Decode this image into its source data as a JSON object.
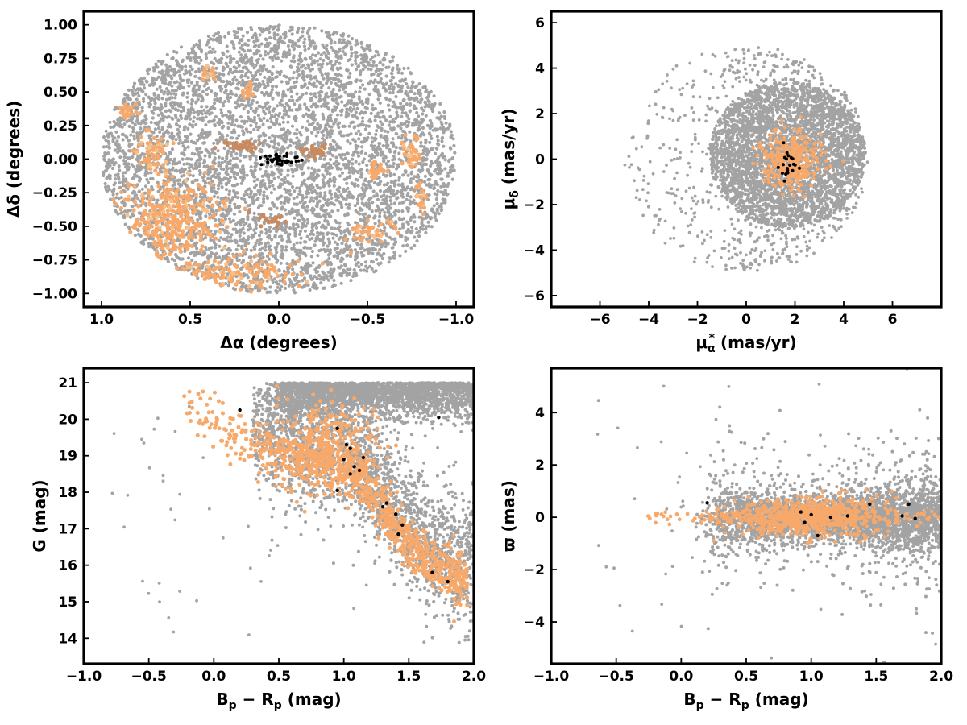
{
  "colors": {
    "field": "#a3a3a3",
    "member": "#f6a96b",
    "member_alt": "#c98a5e",
    "core": "#000000",
    "axes": "#000000"
  },
  "chart_data": [
    {
      "id": "sky",
      "type": "scatter",
      "xlabel": "Δα (degrees)",
      "ylabel": "Δδ (degrees)",
      "xlim": [
        1.1,
        -1.1
      ],
      "ylim": [
        -1.1,
        1.1
      ],
      "x_inverted": true,
      "xticks": [
        1.0,
        0.5,
        0.0,
        -0.5,
        -1.0
      ],
      "xticklabels": [
        "1.0",
        "0.5",
        "0.0",
        "−0.5",
        "−1.0"
      ],
      "yticks": [
        1.0,
        0.75,
        0.5,
        0.25,
        0.0,
        -0.25,
        -0.5,
        -0.75,
        -1.0
      ],
      "yticklabels": [
        "1.00",
        "0.75",
        "0.50",
        "0.25",
        "0.00",
        "−0.25",
        "−0.50",
        "−0.75",
        "−1.00"
      ],
      "field_region": {
        "shape": "ellipse",
        "center": [
          0.0,
          0.0
        ],
        "radius_x": 1.0,
        "radius_y": 1.0
      },
      "member_clumps": [
        {
          "center": [
            0.6,
            -0.45
          ],
          "spread": [
            0.22,
            0.25
          ],
          "n": 380
        },
        {
          "center": [
            0.25,
            -0.85
          ],
          "spread": [
            0.3,
            0.1
          ],
          "n": 150
        },
        {
          "center": [
            0.72,
            0.05
          ],
          "spread": [
            0.08,
            0.12
          ],
          "n": 60
        },
        {
          "center": [
            0.85,
            0.35
          ],
          "spread": [
            0.04,
            0.05
          ],
          "n": 25
        },
        {
          "center": [
            0.4,
            0.65
          ],
          "spread": [
            0.03,
            0.05
          ],
          "n": 20
        },
        {
          "center": [
            0.17,
            0.5
          ],
          "spread": [
            0.03,
            0.05
          ],
          "n": 20
        },
        {
          "center": [
            -0.5,
            -0.55
          ],
          "spread": [
            0.12,
            0.1
          ],
          "n": 40
        },
        {
          "center": [
            -0.55,
            -0.1
          ],
          "spread": [
            0.05,
            0.05
          ],
          "n": 25
        },
        {
          "center": [
            -0.75,
            0.05
          ],
          "spread": [
            0.05,
            0.1
          ],
          "n": 40
        },
        {
          "center": [
            -0.8,
            -0.3
          ],
          "spread": [
            0.05,
            0.1
          ],
          "n": 25
        }
      ],
      "member_alt_clumps": [
        {
          "center": [
            0.2,
            0.1
          ],
          "spread": [
            0.1,
            0.03
          ],
          "n": 40
        },
        {
          "center": [
            -0.2,
            0.05
          ],
          "spread": [
            0.06,
            0.04
          ],
          "n": 30
        },
        {
          "center": [
            0.05,
            -0.45
          ],
          "spread": [
            0.08,
            0.05
          ],
          "n": 25
        }
      ],
      "core_clumps": [
        {
          "center": [
            0.0,
            0.0
          ],
          "spread": [
            0.08,
            0.03
          ],
          "n": 45
        }
      ]
    },
    {
      "id": "proper_motion",
      "type": "scatter",
      "xlabel": "μα* (mas/yr)",
      "ylabel": "μδ (mas/yr)",
      "xlim": [
        -8,
        8
      ],
      "ylim": [
        -6.5,
        6.5
      ],
      "xticks": [
        -6,
        -4,
        -2,
        0,
        2,
        4,
        6
      ],
      "xticklabels": [
        "−6",
        "−4",
        "−2",
        "0",
        "2",
        "4",
        "6"
      ],
      "yticks": [
        6,
        4,
        2,
        0,
        -2,
        -4,
        -6
      ],
      "yticklabels": [
        "6",
        "4",
        "2",
        "0",
        "−2",
        "−4",
        "−6"
      ],
      "field_region": {
        "shape": "disk",
        "center": [
          1.7,
          0.2
        ],
        "radius": 3.2,
        "halo_center": [
          0.0,
          0.0
        ],
        "halo_radius": 5.0
      },
      "member_clumps": [
        {
          "center": [
            1.8,
            -0.1
          ],
          "spread": [
            0.6,
            0.6
          ],
          "n": 320
        }
      ],
      "core_clumps": [
        {
          "center": [
            1.6,
            -0.2
          ],
          "spread": [
            0.3,
            0.3
          ],
          "n": 20
        }
      ]
    },
    {
      "id": "cmd",
      "type": "scatter",
      "xlabel": "Bp − Rp (mag)",
      "ylabel": "G (mag)",
      "xlim": [
        -1.0,
        2.0
      ],
      "ylim": [
        13.3,
        21.4
      ],
      "xticks": [
        -1.0,
        -0.5,
        0.0,
        0.5,
        1.0,
        1.5,
        2.0
      ],
      "xticklabels": [
        "−1.0",
        "−0.5",
        "0.0",
        "0.5",
        "1.0",
        "1.5",
        "2.0"
      ],
      "yticks": [
        21,
        20,
        19,
        18,
        17,
        16,
        15,
        14
      ],
      "yticklabels": [
        "21",
        "20",
        "19",
        "18",
        "17",
        "16",
        "15",
        "14"
      ],
      "sequence": [
        [
          -0.3,
          20.9
        ],
        [
          0.1,
          19.6
        ],
        [
          0.5,
          19.0
        ],
        [
          0.9,
          18.8
        ],
        [
          1.15,
          18.3
        ],
        [
          1.3,
          17.5
        ],
        [
          1.5,
          16.6
        ],
        [
          1.7,
          16.0
        ],
        [
          1.9,
          15.6
        ]
      ],
      "field_band": {
        "x_range": [
          0.5,
          2.0
        ],
        "g_range": [
          19.8,
          21.0
        ]
      },
      "core_points": [
        [
          0.2,
          20.25
        ],
        [
          0.95,
          19.75
        ],
        [
          1.02,
          19.3
        ],
        [
          1.05,
          19.2
        ],
        [
          1.0,
          18.9
        ],
        [
          1.08,
          18.7
        ],
        [
          1.12,
          18.6
        ],
        [
          1.05,
          18.5
        ],
        [
          0.95,
          18.05
        ],
        [
          1.3,
          17.6
        ],
        [
          1.4,
          17.4
        ],
        [
          1.45,
          17.1
        ],
        [
          1.42,
          16.85
        ],
        [
          1.68,
          15.8
        ],
        [
          1.8,
          15.55
        ],
        [
          1.73,
          20.05
        ],
        [
          1.15,
          18.95
        ],
        [
          1.33,
          17.7
        ]
      ]
    },
    {
      "id": "parallax",
      "type": "scatter",
      "xlabel": "Bp − Rp (mag)",
      "ylabel": "ϖ (mas)",
      "xlim": [
        -1.0,
        2.0
      ],
      "ylim": [
        -5.6,
        5.7
      ],
      "xticks": [
        -1.0,
        -0.5,
        0.0,
        0.5,
        1.0,
        1.5,
        2.0
      ],
      "xticklabels": [
        "−1.0",
        "−0.5",
        "0.0",
        "0.5",
        "1.0",
        "1.5",
        "2.0"
      ],
      "yticks": [
        4,
        2,
        0,
        -2,
        -4
      ],
      "yticklabels": [
        "4",
        "2",
        "0",
        "−2",
        "−4"
      ],
      "member_center": [
        1.0,
        0.0
      ],
      "core_points": [
        [
          0.2,
          0.55
        ],
        [
          0.92,
          0.2
        ],
        [
          0.95,
          -0.2
        ],
        [
          1.0,
          0.1
        ],
        [
          1.05,
          -0.7
        ],
        [
          1.15,
          0.0
        ],
        [
          1.28,
          0.05
        ],
        [
          1.45,
          0.5
        ],
        [
          1.7,
          0.05
        ],
        [
          1.75,
          0.5
        ],
        [
          1.8,
          -0.05
        ]
      ]
    }
  ]
}
